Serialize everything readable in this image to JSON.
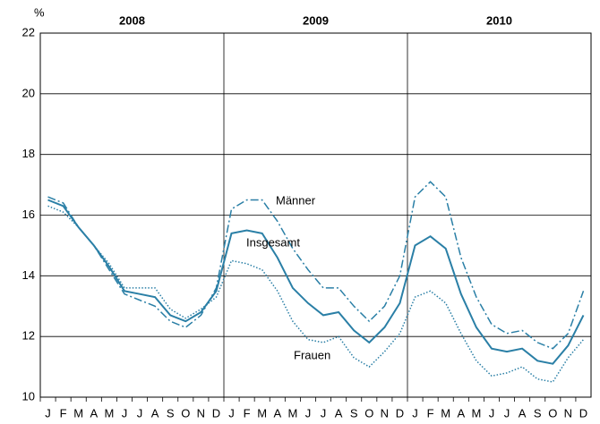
{
  "chart_data": {
    "type": "line",
    "y_label": "%",
    "years": [
      "2008",
      "2009",
      "2010"
    ],
    "categories": [
      "J",
      "F",
      "M",
      "A",
      "M",
      "J",
      "J",
      "A",
      "S",
      "O",
      "N",
      "D",
      "J",
      "F",
      "M",
      "A",
      "M",
      "J",
      "J",
      "A",
      "S",
      "O",
      "N",
      "D",
      "J",
      "F",
      "M",
      "A",
      "M",
      "J",
      "J",
      "A",
      "S",
      "O",
      "N",
      "D"
    ],
    "series": [
      {
        "name": "Männer",
        "color": "#2a7fa6",
        "style": "dashdot",
        "values": [
          16.6,
          16.4,
          15.6,
          15.0,
          14.2,
          13.4,
          13.2,
          13.0,
          12.5,
          12.3,
          12.7,
          13.6,
          16.2,
          16.5,
          16.5,
          15.8,
          14.9,
          14.2,
          13.6,
          13.6,
          13.0,
          12.5,
          13.0,
          14.0,
          16.6,
          17.1,
          16.6,
          14.6,
          13.3,
          12.4,
          12.1,
          12.2,
          11.8,
          11.6,
          12.1,
          13.5
        ]
      },
      {
        "name": "Insgesamt",
        "color": "#2a7fa6",
        "style": "solid",
        "values": [
          16.5,
          16.3,
          15.6,
          15.0,
          14.3,
          13.5,
          13.4,
          13.3,
          12.7,
          12.5,
          12.8,
          13.5,
          15.4,
          15.5,
          15.4,
          14.6,
          13.6,
          13.1,
          12.7,
          12.8,
          12.2,
          11.8,
          12.3,
          13.1,
          15.0,
          15.3,
          14.9,
          13.4,
          12.3,
          11.6,
          11.5,
          11.6,
          11.2,
          11.1,
          11.7,
          12.7
        ]
      },
      {
        "name": "Frauen",
        "color": "#2a7fa6",
        "style": "dotted",
        "values": [
          16.3,
          16.1,
          15.6,
          15.0,
          14.4,
          13.6,
          13.6,
          13.6,
          12.9,
          12.6,
          12.9,
          13.3,
          14.5,
          14.4,
          14.2,
          13.5,
          12.5,
          11.9,
          11.8,
          12.0,
          11.3,
          11.0,
          11.5,
          12.1,
          13.3,
          13.5,
          13.1,
          12.1,
          11.2,
          10.7,
          10.8,
          11.0,
          10.6,
          10.5,
          11.3,
          11.9
        ]
      }
    ],
    "ylim": [
      10,
      22
    ],
    "yticks": [
      10,
      12,
      14,
      16,
      18,
      20,
      22
    ],
    "grid": true
  }
}
